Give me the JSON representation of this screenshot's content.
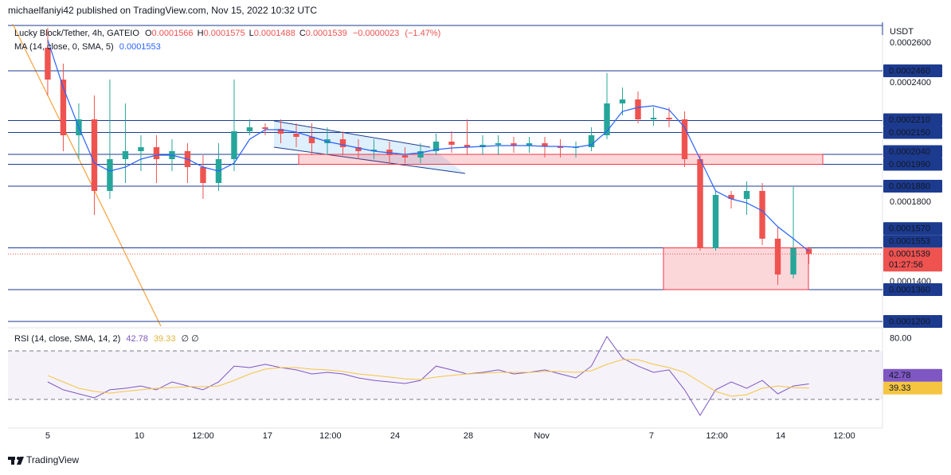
{
  "header": {
    "text": "michaelfaniyi42 published on TradingView.com, Nov 15, 2022 10:32 UTC"
  },
  "footer": {
    "brand": "TradingView"
  },
  "chart_data": [
    {
      "type": "candlestick",
      "title": "Lucky Block/Tether, 4h, GATEIO",
      "ohlc_letters": [
        "O",
        "H",
        "L",
        "C"
      ],
      "change": {
        "value": -2.3e-06,
        "label": "−0.0000023"
      },
      "change_pct": {
        "value": -1.47,
        "label": "(−1.47%)"
      },
      "currency": "USDT",
      "countdown": "01:27:56",
      "x": [
        0,
        1,
        2,
        3,
        4,
        5,
        6,
        7,
        8,
        9,
        10,
        11,
        12,
        13,
        14,
        15,
        16,
        17,
        18,
        19,
        20,
        21,
        22,
        23,
        24,
        25,
        26,
        27,
        28,
        29,
        30,
        31,
        32,
        33,
        34,
        35,
        36,
        37,
        38,
        39,
        40,
        41,
        42,
        43,
        44,
        45,
        46,
        47,
        48,
        49
      ],
      "xlim": [
        -2.56,
        53.74
      ],
      "xticks": [
        {
          "value": 0,
          "label": "5"
        },
        {
          "value": 5.9,
          "label": "10"
        },
        {
          "value": 10,
          "label": "12:00"
        },
        {
          "value": 14.15,
          "label": "17"
        },
        {
          "value": 18.2,
          "label": "12:00"
        },
        {
          "value": 22.36,
          "label": "24"
        },
        {
          "value": 27.08,
          "label": "28"
        },
        {
          "value": 31.8,
          "label": "Nov"
        },
        {
          "value": 38.87,
          "label": "7"
        },
        {
          "value": 43.08,
          "label": "12:00"
        },
        {
          "value": 47.18,
          "label": "14"
        },
        {
          "value": 51.28,
          "label": "12:00"
        }
      ],
      "ylim": [
        0.0001168,
        0.0002696
      ],
      "yticks": [
        {
          "value": 0.00026,
          "label": "0.0002600"
        },
        {
          "value": 0.00024,
          "label": "0.0002400"
        },
        {
          "value": 0.00018,
          "label": "0.0001800"
        },
        {
          "value": 0.00014,
          "label": "0.0001400"
        }
      ],
      "grid": false,
      "up_color": "#26a69a",
      "down_color": "#ef5350",
      "open": [
        0.0002576,
        0.0002416,
        0.0002136,
        0.0002216,
        0.0001856,
        0.0002016,
        0.0002056,
        0.0002076,
        0.0002016,
        0.0002056,
        0.0001976,
        0.0001896,
        0.0002016,
        0.0002156,
        0.0002176,
        0.0002168,
        0.0002144,
        0.0002128,
        0.0002096,
        0.0002116,
        0.0002076,
        0.0002056,
        0.0002064,
        0.0002036,
        0.0002024,
        0.0002056,
        0.0002104,
        0.0002088,
        0.0002076,
        0.0002088,
        0.0002096,
        0.0002084,
        0.0002096,
        0.000208,
        0.0002072,
        0.0002076,
        0.0002136,
        0.0002296,
        0.0002316,
        0.0002216,
        0.0002224,
        0.0002216,
        0.0002016,
        0.0001568,
        0.0001836,
        0.0001816,
        0.0001856,
        0.0001616,
        0.0001436,
        0.0001566
      ],
      "high": [
        0.0002676,
        0.0002496,
        0.0002296,
        0.0002336,
        0.0002416,
        0.0002296,
        0.0002136,
        0.0002136,
        0.0002116,
        0.0002096,
        0.0002036,
        0.0002096,
        0.0002416,
        0.0002216,
        0.0002196,
        0.0002216,
        0.0002196,
        0.0002196,
        0.0002176,
        0.0002156,
        0.0002116,
        0.0002116,
        0.0002104,
        0.0002076,
        0.0002096,
        0.0002144,
        0.0002156,
        0.0002216,
        0.0002136,
        0.0002136,
        0.0002128,
        0.0002128,
        0.0002128,
        0.0002116,
        0.0002104,
        0.0002176,
        0.0002448,
        0.0002376,
        0.0002356,
        0.0002276,
        0.0002276,
        0.0002256,
        0.0002036,
        0.0001856,
        0.0001856,
        0.0001904,
        0.0001896,
        0.0001676,
        0.0001876,
        0.0001575
      ],
      "low": [
        0.0002336,
        0.0002056,
        0.0002016,
        0.0001736,
        0.0001816,
        0.0001896,
        0.0001956,
        0.0001896,
        0.0001956,
        0.0001896,
        0.0001816,
        0.0001856,
        0.0001956,
        0.0002136,
        0.0002136,
        0.0002096,
        0.0002076,
        0.0002036,
        0.0002036,
        0.0002036,
        0.0002016,
        0.0002016,
        0.0001996,
        0.0001996,
        0.0001996,
        0.0002036,
        0.0002048,
        0.0002036,
        0.0002036,
        0.0002036,
        0.0002048,
        0.0002048,
        0.0002024,
        0.0002024,
        0.0002024,
        0.0002056,
        0.0002116,
        0.0002236,
        0.0002196,
        0.0002184,
        0.0002176,
        0.0001976,
        0.0001556,
        0.0001556,
        0.0001768,
        0.0001736,
        0.0001584,
        0.0001384,
        0.0001416,
        0.0001488
      ],
      "close": [
        0.0002416,
        0.0002136,
        0.0002216,
        0.0001856,
        0.0002016,
        0.0002056,
        0.0002076,
        0.0002016,
        0.0002056,
        0.0001976,
        0.0001896,
        0.0002016,
        0.0002156,
        0.0002176,
        0.0002168,
        0.0002144,
        0.0002128,
        0.0002096,
        0.0002116,
        0.0002076,
        0.0002056,
        0.0002064,
        0.0002036,
        0.0002024,
        0.0002056,
        0.0002104,
        0.0002088,
        0.0002076,
        0.0002088,
        0.0002096,
        0.0002084,
        0.0002096,
        0.000208,
        0.0002072,
        0.0002076,
        0.0002136,
        0.0002296,
        0.0002316,
        0.0002216,
        0.0002224,
        0.0002216,
        0.0002016,
        0.0001568,
        0.0001836,
        0.0001816,
        0.0001856,
        0.0001616,
        0.0001436,
        0.0001568,
        0.0001539
      ],
      "series": [
        {
          "name": "MA (14, close, 0, SMA, 5)",
          "color": "#2962ff",
          "values": [
            0.0002616,
            0.0002376,
            0.0002176,
            0.0001996,
            0.0001956,
            0.0001976,
            0.0002016,
            0.0002036,
            0.0002036,
            0.0002016,
            0.0001976,
            0.0001956,
            0.0001996,
            0.0002116,
            0.0002164,
            0.0002164,
            0.0002152,
            0.0002128,
            0.0002104,
            0.0002088,
            0.0002072,
            0.0002056,
            0.0002048,
            0.000204,
            0.0002048,
            0.0002064,
            0.0002072,
            0.0002076,
            0.000208,
            0.0002084,
            0.0002084,
            0.0002084,
            0.000208,
            0.000208,
            0.0002076,
            0.0002088,
            0.0002156,
            0.0002256,
            0.0002276,
            0.0002284,
            0.0002264,
            0.0002176,
            0.0002016,
            0.0001856,
            0.0001816,
            0.0001796,
            0.0001756,
            0.0001676,
            0.0001616,
            0.0001553
          ]
        }
      ],
      "level_color": "#1c3b8f",
      "levels": [
        {
          "value": 0.000246,
          "label": "0.0002460"
        },
        {
          "value": 0.000221,
          "label": "0.0002210"
        },
        {
          "value": 0.000215,
          "label": "0.0002150"
        },
        {
          "value": 0.000204,
          "label": "0.0002040"
        },
        {
          "value": 0.000199,
          "label": "0.0001990"
        },
        {
          "value": 0.000188,
          "label": "0.0001880"
        },
        {
          "value": 0.000157,
          "label": "0.0001570"
        },
        {
          "value": 0.000136,
          "label": "0.0001360"
        },
        {
          "value": 0.00012,
          "label": "0.0001200"
        }
      ]
    },
    {
      "type": "line",
      "title": "RSI (14, close, SMA, 14, 2)",
      "extra": "∅ ∅",
      "ylim": [
        6.4,
        89
      ],
      "yticks": [
        {
          "value": 80,
          "label": "80.00"
        }
      ],
      "bands": [
        30,
        70
      ],
      "band_color": "#7e57c2",
      "series": [
        {
          "color": "#7e57c2",
          "values": [
            44.4,
            37.9,
            34.6,
            31.3,
            37.9,
            39.2,
            41.1,
            37.9,
            44.4,
            41.1,
            37.9,
            44.4,
            57.5,
            56.2,
            58.9,
            56.2,
            54.3,
            51.0,
            52.3,
            51.0,
            47.7,
            45.7,
            44.4,
            43.1,
            45.7,
            57.5,
            54.3,
            51.0,
            52.3,
            54.3,
            51.0,
            52.3,
            54.3,
            51.0,
            47.7,
            57.5,
            81.8,
            64.1,
            57.5,
            52.3,
            54.3,
            37.9,
            16.9,
            37.9,
            44.4,
            39.2,
            45.7,
            34.6,
            41.1,
            42.78
          ]
        },
        {
          "color": "#f5c542",
          "values": [
            49.7,
            44.4,
            39.2,
            36.6,
            35.2,
            36.6,
            37.9,
            39.2,
            39.8,
            40.5,
            40.5,
            41.1,
            45.7,
            51.0,
            54.9,
            56.2,
            56.2,
            54.9,
            54.3,
            53.0,
            51.0,
            49.7,
            48.4,
            47.0,
            46.4,
            48.4,
            49.7,
            51.0,
            51.6,
            52.3,
            52.3,
            52.3,
            53.0,
            53.0,
            52.3,
            53.6,
            58.9,
            62.8,
            62.8,
            58.9,
            56.2,
            52.3,
            44.4,
            36.6,
            32.6,
            33.9,
            39.2,
            41.1,
            39.8,
            39.33
          ]
        }
      ]
    }
  ]
}
